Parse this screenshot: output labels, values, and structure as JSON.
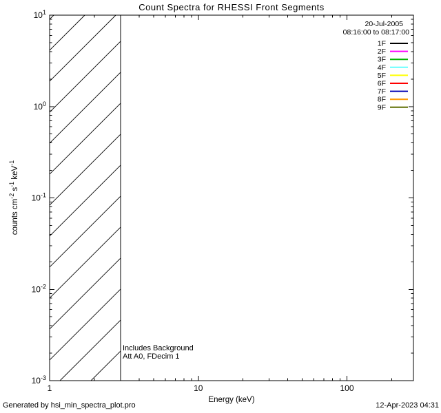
{
  "footer": {
    "left": "Generated by hsi_min_spectra_plot.pro",
    "right": "12-Apr-2023 04:31"
  },
  "chart_data": {
    "type": "line",
    "title": "Count Spectra for RHESSI Front Segments",
    "xlabel": "Energy (keV)",
    "ylabel": "counts cm^{-2} s^{-1} keV^{-1}",
    "xscale": "log",
    "yscale": "log",
    "xlim": [
      1,
      280
    ],
    "ylim": [
      0.001,
      10
    ],
    "grid": false,
    "x_ticks": [
      {
        "value": 1,
        "label": "1"
      },
      {
        "value": 10,
        "label": "10"
      },
      {
        "value": 100,
        "label": "100"
      }
    ],
    "y_ticks": [
      {
        "value": 10,
        "label": "10^{1}"
      },
      {
        "value": 1,
        "label": "10^{0}"
      },
      {
        "value": 0.1,
        "label": "10^{-1}"
      },
      {
        "value": 0.01,
        "label": "10^{-2}"
      },
      {
        "value": 0.001,
        "label": "10^{-3}"
      }
    ],
    "annotations": {
      "date": "20-Jul-2005",
      "time_range": "08:16:00 to 08:17:00",
      "note_line1": "Includes Background",
      "note_line2": "Att A0, FDecim 1"
    },
    "hatched_region": {
      "x_start": 1,
      "x_end": 3,
      "meaning": "hatched low-energy band, no data"
    },
    "legend_position": "top-right",
    "legend": [
      {
        "label": "1F",
        "color": "#000000"
      },
      {
        "label": "2F",
        "color": "#ff00ff"
      },
      {
        "label": "3F",
        "color": "#00b400"
      },
      {
        "label": "4F",
        "color": "#66ffff"
      },
      {
        "label": "5F",
        "color": "#ffff00"
      },
      {
        "label": "6F",
        "color": "#ff0000"
      },
      {
        "label": "7F",
        "color": "#0000b4"
      },
      {
        "label": "8F",
        "color": "#ff9900"
      },
      {
        "label": "9F",
        "color": "#5f6e00"
      }
    ],
    "series": []
  }
}
